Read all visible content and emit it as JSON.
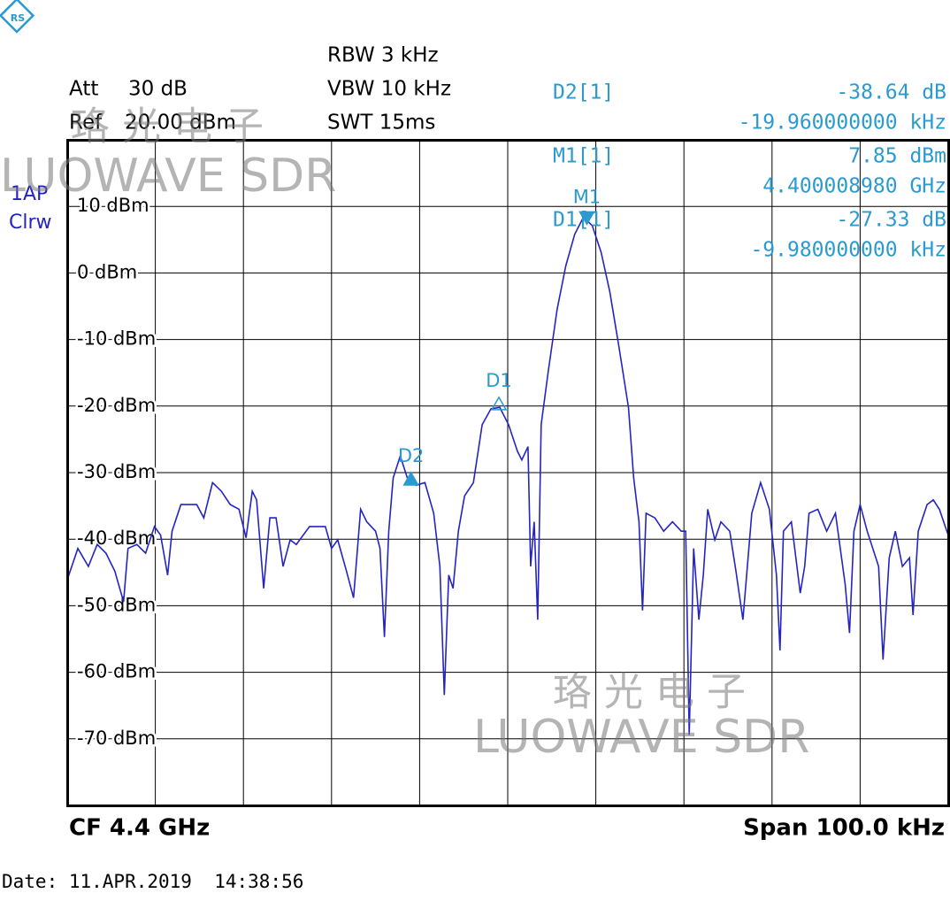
{
  "chart_data": {
    "type": "line",
    "header": {
      "att_label": "Att",
      "att": "30 dB",
      "ref_label": "Ref",
      "ref": "20.00 dBm",
      "rbw": "RBW 3 kHz",
      "vbw": "VBW 10 kHz",
      "swt": "SWT 15ms",
      "trace_id": "1AP",
      "trace_mode": "Clrw"
    },
    "watermark": {
      "cn": "珞光电子",
      "en": "LUOWAVE SDR"
    },
    "footer": {
      "cf": "CF 4.4 GHz",
      "span": "Span 100.0 kHz",
      "date": "Date: 11.APR.2019  14:38:56"
    },
    "xlim": [
      -50,
      50
    ],
    "xgrid": [
      -40,
      -30,
      -20,
      -10,
      0,
      10,
      20,
      30,
      40
    ],
    "ylim": [
      -80,
      20
    ],
    "yticks": [
      {
        "value": 10,
        "label": "10 dBm"
      },
      {
        "value": 0,
        "label": "0 dBm"
      },
      {
        "value": -10,
        "label": "-10 dBm"
      },
      {
        "value": -20,
        "label": "-20 dBm"
      },
      {
        "value": -30,
        "label": "-30 dBm"
      },
      {
        "value": -40,
        "label": "-40 dBm"
      },
      {
        "value": -50,
        "label": "-50 dBm"
      },
      {
        "value": -60,
        "label": "-60 dBm"
      },
      {
        "value": -70,
        "label": "-70 dBm"
      }
    ],
    "grid": true,
    "color": "#2424c4",
    "x": [
      -50.0,
      -48.8,
      -47.6,
      -46.6,
      -45.6,
      -44.6,
      -43.6,
      -43.1,
      -42.1,
      -41.1,
      -40.1,
      -39.4,
      -38.6,
      -38.1,
      -37.1,
      -35.3,
      -34.5,
      -33.5,
      -32.5,
      -31.5,
      -30.5,
      -29.7,
      -29.0,
      -28.5,
      -27.7,
      -27.0,
      -26.3,
      -25.5,
      -24.7,
      -24.0,
      -22.5,
      -20.7,
      -20.0,
      -19.3,
      -18.3,
      -17.5,
      -16.7,
      -16.0,
      -15.0,
      -14.5,
      -14.0,
      -13.5,
      -13.0,
      -12.2,
      -11.4,
      -10.4,
      -9.4,
      -8.4,
      -7.7,
      -7.2,
      -6.7,
      -6.2,
      -5.6,
      -4.9,
      -3.9,
      -2.9,
      -1.9,
      -0.9,
      0.1,
      1.1,
      1.6,
      2.3,
      2.6,
      3.0,
      3.4,
      3.8,
      4.6,
      5.6,
      6.6,
      7.6,
      8.6,
      9.6,
      10.6,
      11.6,
      12.6,
      13.7,
      14.3,
      14.9,
      15.3,
      15.7,
      16.7,
      17.7,
      18.7,
      19.7,
      20.2,
      20.6,
      21.1,
      21.7,
      22.2,
      22.7,
      23.5,
      24.2,
      25.2,
      25.9,
      26.7,
      27.7,
      28.7,
      29.7,
      30.5,
      30.9,
      31.3,
      32.2,
      33.2,
      33.7,
      34.2,
      35.2,
      36.2,
      37.2,
      38.3,
      38.8,
      39.3,
      40.0,
      40.8,
      42.1,
      42.6,
      43.3,
      44.0,
      44.8,
      45.6,
      46.0,
      46.6,
      47.6,
      48.3,
      49.0,
      50.0
    ],
    "values": [
      -46.1,
      -41.4,
      -44.1,
      -40.8,
      -42.1,
      -44.8,
      -49.4,
      -41.4,
      -40.8,
      -42.1,
      -38.1,
      -39.4,
      -45.4,
      -38.8,
      -34.8,
      -34.8,
      -36.8,
      -31.5,
      -32.8,
      -34.8,
      -35.5,
      -39.8,
      -32.8,
      -34.1,
      -47.4,
      -36.8,
      -36.8,
      -44.1,
      -40.1,
      -40.8,
      -38.1,
      -38.1,
      -41.4,
      -40.1,
      -44.8,
      -48.8,
      -35.5,
      -37.4,
      -38.8,
      -41.4,
      -54.7,
      -38.8,
      -30.8,
      -27.5,
      -30.8,
      -31.9,
      -31.5,
      -36.1,
      -44.1,
      -63.4,
      -45.4,
      -47.4,
      -38.8,
      -33.5,
      -31.5,
      -22.8,
      -20.4,
      -20.2,
      -22.8,
      -26.8,
      -28.1,
      -26.1,
      -44.1,
      -37.4,
      -52.1,
      -22.8,
      -14.8,
      -5.5,
      1.1,
      5.8,
      8.4,
      7.1,
      3.1,
      -2.9,
      -10.9,
      -20.2,
      -30.8,
      -37.4,
      -50.7,
      -36.1,
      -36.8,
      -38.8,
      -37.4,
      -38.8,
      -38.8,
      -69.4,
      -41.4,
      -52.1,
      -45.4,
      -35.5,
      -40.1,
      -37.4,
      -38.8,
      -44.8,
      -52.1,
      -36.1,
      -31.5,
      -35.5,
      -45.4,
      -56.7,
      -38.8,
      -37.4,
      -48.1,
      -44.1,
      -36.1,
      -35.5,
      -38.8,
      -36.1,
      -46.8,
      -54.1,
      -38.8,
      -34.8,
      -38.8,
      -44.1,
      -58.1,
      -42.8,
      -38.8,
      -44.1,
      -42.8,
      -51.4,
      -38.8,
      -34.8,
      -34.1,
      -35.5,
      -39.4
    ],
    "markers": [
      {
        "name": "M1",
        "readout": "M1[1]",
        "x": 8.98,
        "value": 7.85,
        "value_label": "7.85 dBm",
        "x_label": "4.400008980 GHz"
      },
      {
        "name": "D1",
        "readout": "D1[1]",
        "x": -9.98,
        "value": -27.33,
        "value_label": "-27.33 dB",
        "x_label": "-9.980000000 kHz"
      },
      {
        "name": "D2",
        "readout": "D2[1]",
        "x": -19.96,
        "value": -38.64,
        "value_label": "-38.64 dB",
        "x_label": "-19.960000000 kHz"
      }
    ]
  }
}
